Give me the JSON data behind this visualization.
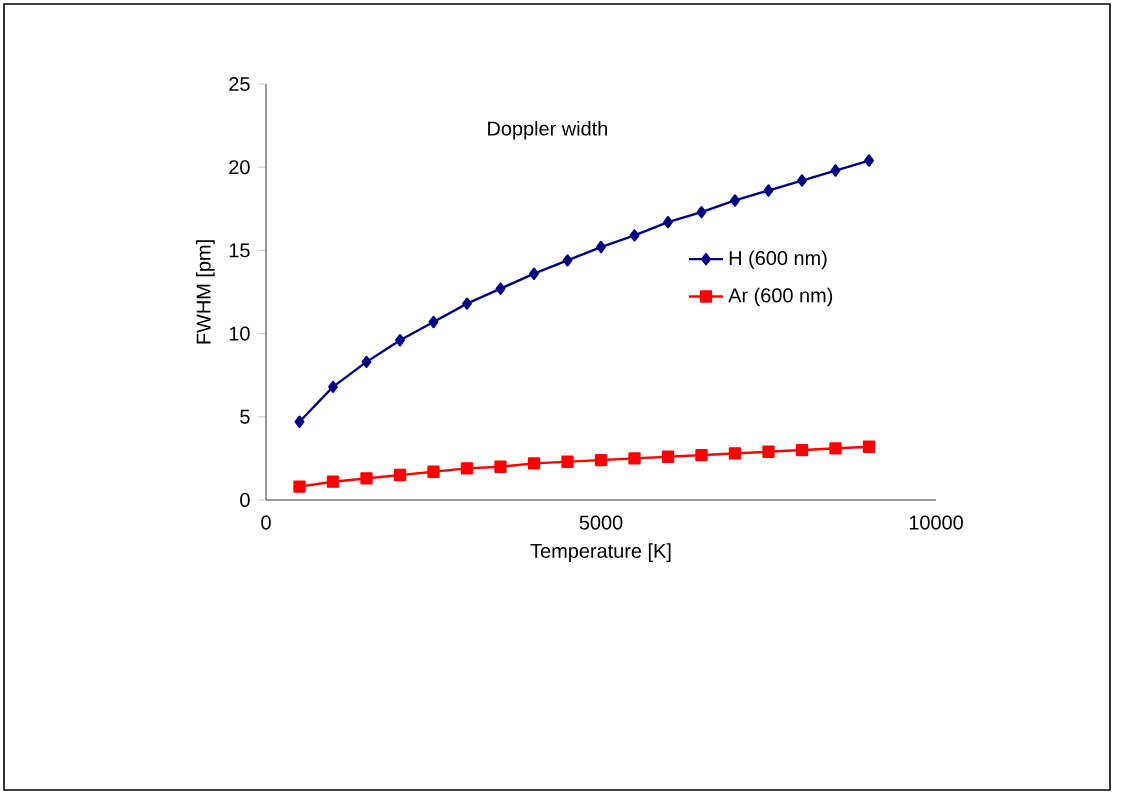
{
  "chart_data": {
    "type": "line",
    "title": "Doppler width",
    "xlabel": "Temperature [K]",
    "ylabel": "FWHM [pm]",
    "x": [
      500,
      1000,
      1500,
      2000,
      2500,
      3000,
      3500,
      4000,
      4500,
      5000,
      5500,
      6000,
      6500,
      7000,
      7500,
      8000,
      8500,
      9000
    ],
    "series": [
      {
        "name": "H (600 nm)",
        "color": "#000080",
        "marker": "diamond",
        "values": [
          4.7,
          6.8,
          8.3,
          9.6,
          10.7,
          11.8,
          12.7,
          13.6,
          14.4,
          15.2,
          15.9,
          16.7,
          17.3,
          18.0,
          18.6,
          19.2,
          19.8,
          20.4
        ]
      },
      {
        "name": "Ar (600 nm)",
        "color": "#ff0000",
        "marker": "square",
        "values": [
          0.8,
          1.1,
          1.3,
          1.5,
          1.7,
          1.9,
          2.0,
          2.2,
          2.3,
          2.4,
          2.5,
          2.6,
          2.7,
          2.8,
          2.9,
          3.0,
          3.1,
          3.2
        ]
      }
    ],
    "xlim": [
      0,
      10000
    ],
    "ylim": [
      0,
      25
    ],
    "xticks": [
      0,
      5000,
      10000
    ],
    "yticks": [
      0,
      5,
      10,
      15,
      20,
      25
    ],
    "grid": false,
    "legend": "right",
    "line_style": "solid"
  }
}
